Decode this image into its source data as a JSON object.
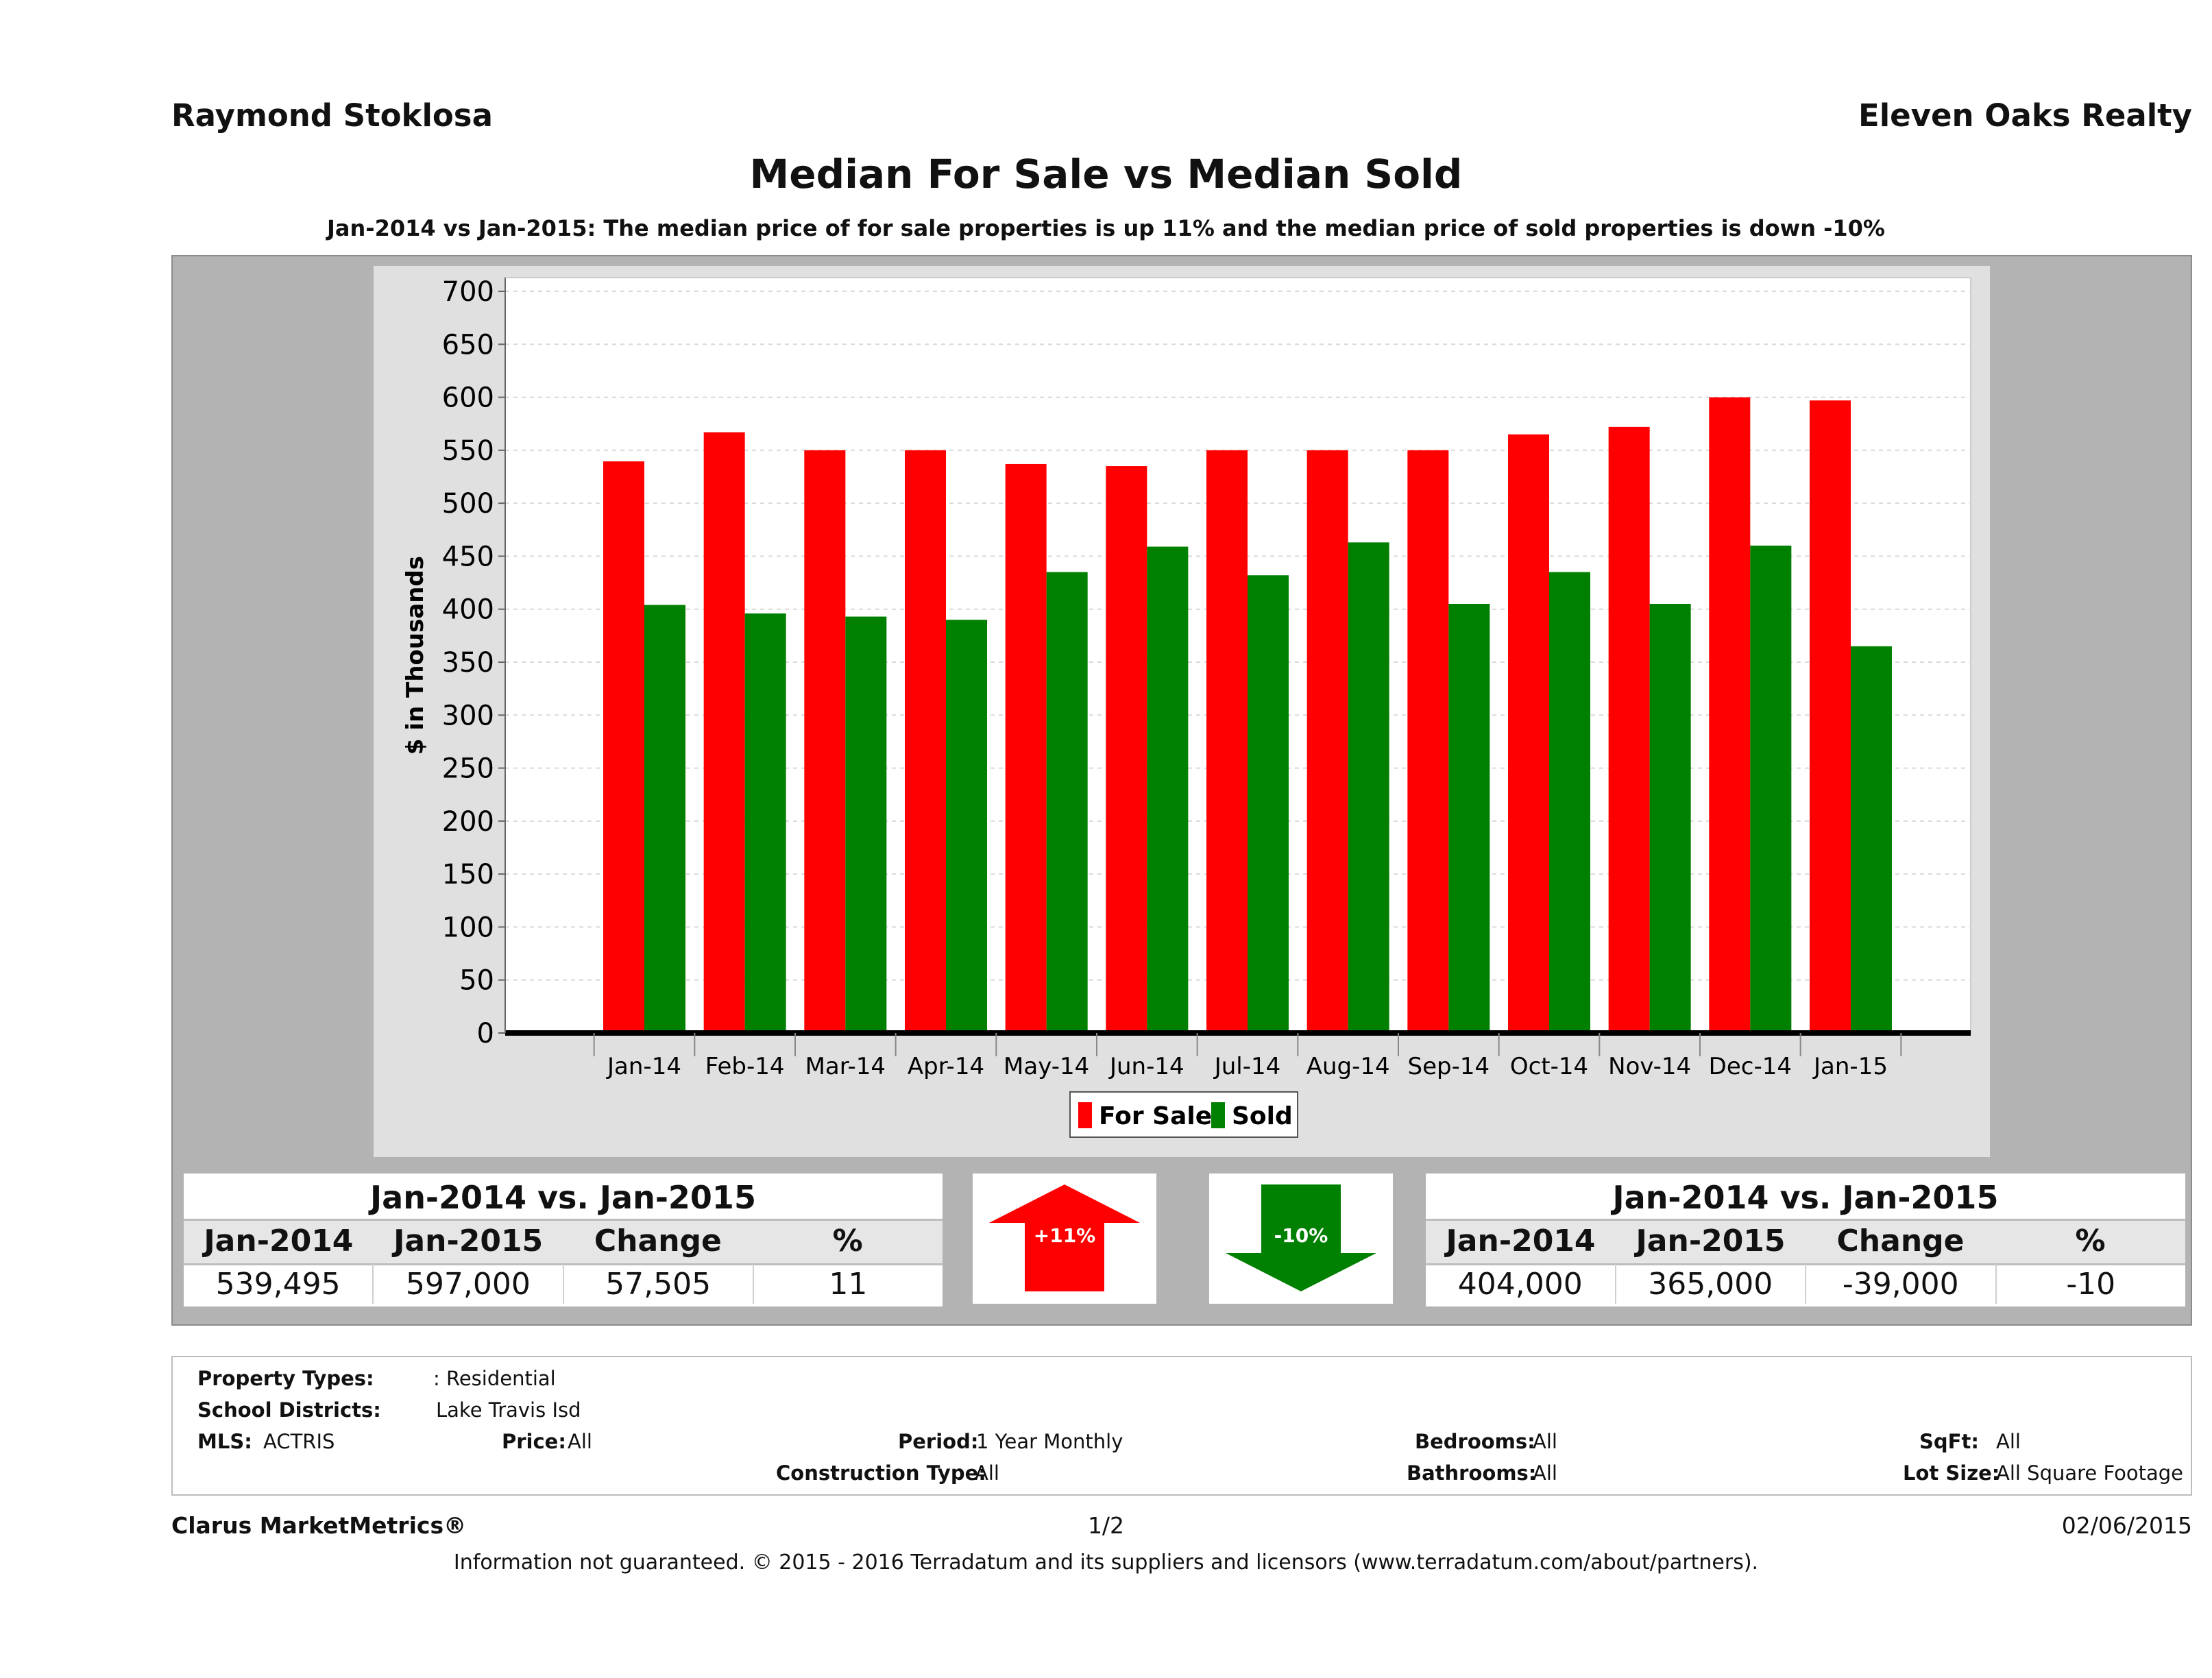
{
  "header": {
    "agent": "Raymond Stoklosa",
    "company": "Eleven Oaks Realty",
    "title": "Median For Sale vs Median Sold",
    "subtitle": "Jan-2014 vs Jan-2015: The median price of for sale properties is up 11% and the median price of sold properties is down -10%"
  },
  "chart_data": {
    "type": "bar",
    "ylabel": "$ in Thousands",
    "ylim": [
      0,
      700
    ],
    "yticks": [
      0,
      50,
      100,
      150,
      200,
      250,
      300,
      350,
      400,
      450,
      500,
      550,
      600,
      650,
      700
    ],
    "categories": [
      "Jan-14",
      "Feb-14",
      "Mar-14",
      "Apr-14",
      "May-14",
      "Jun-14",
      "Jul-14",
      "Aug-14",
      "Sep-14",
      "Oct-14",
      "Nov-14",
      "Dec-14",
      "Jan-15"
    ],
    "series": [
      {
        "name": "For Sale",
        "color": "#ff0000",
        "values": [
          539.5,
          567,
          550,
          550,
          537,
          535,
          550,
          550,
          550,
          565,
          572,
          600,
          597
        ]
      },
      {
        "name": "Sold",
        "color": "#008000",
        "values": [
          404,
          396,
          393,
          390,
          435,
          459,
          432,
          463,
          405,
          435,
          405,
          460,
          365
        ]
      }
    ],
    "grid": true,
    "legend": "bottom-center"
  },
  "for_sale_summary": {
    "title": "Jan-2014 vs. Jan-2015",
    "headers": [
      "Jan-2014",
      "Jan-2015",
      "Change",
      "%"
    ],
    "values": [
      "539,495",
      "597,000",
      "57,505",
      "11"
    ],
    "badge": "+11%",
    "badge_color": "#ff0000"
  },
  "sold_summary": {
    "title": "Jan-2014 vs. Jan-2015",
    "headers": [
      "Jan-2014",
      "Jan-2015",
      "Change",
      "%"
    ],
    "values": [
      "404,000",
      "365,000",
      "-39,000",
      "-10"
    ],
    "badge": "-10%",
    "badge_color": "#008000"
  },
  "filters": {
    "property_types_label": "Property Types:",
    "property_types_value": ": Residential",
    "school_districts_label": "School Districts:",
    "school_districts_value": "Lake Travis Isd",
    "mls_label": "MLS:",
    "mls_value": "ACTRIS",
    "price_label": "Price:",
    "price_value": "All",
    "period_label": "Period:",
    "period_value": "1 Year Monthly",
    "construction_label": "Construction Type:",
    "construction_value": "All",
    "bedrooms_label": "Bedrooms:",
    "bedrooms_value": "All",
    "bathrooms_label": "Bathrooms:",
    "bathrooms_value": "All",
    "sqft_label": "SqFt:",
    "sqft_value": "All",
    "lotsize_label": "Lot Size:",
    "lotsize_value": "All Square Footage"
  },
  "footer": {
    "brand": "Clarus MarketMetrics®",
    "page": "1/2",
    "date": "02/06/2015",
    "disclaimer": "Information not guaranteed. © 2015 - 2016 Terradatum and its suppliers and licensors (www.terradatum.com/about/partners)."
  }
}
